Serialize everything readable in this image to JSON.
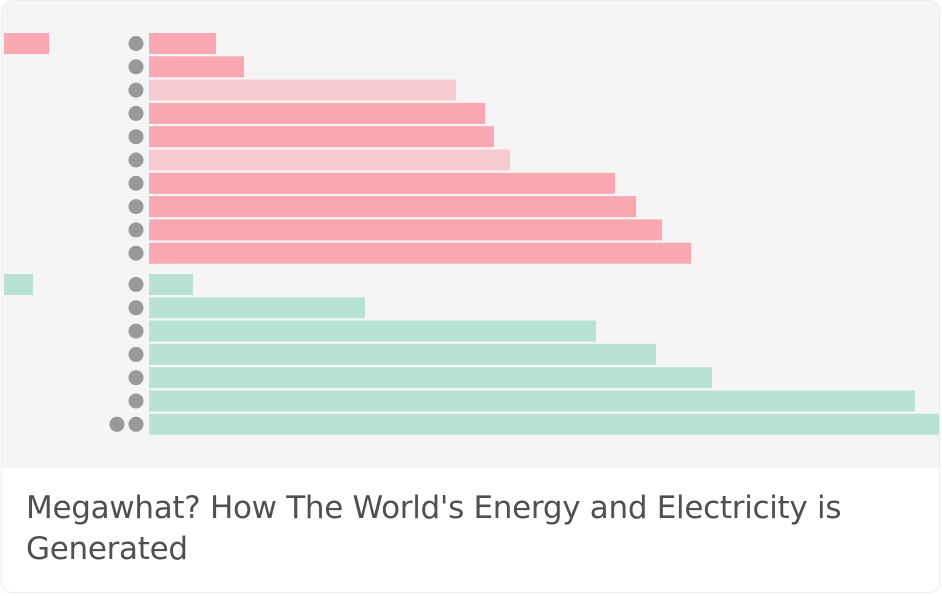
{
  "card": {
    "title": "Megawhat? How The World's Energy and Electricity is Generated"
  },
  "chart_data": {
    "type": "bar",
    "orientation": "horizontal",
    "title": "",
    "xlabel": "",
    "ylabel": "",
    "xlim": [
      0,
      790
    ],
    "groups": [
      {
        "color": "#f9a8b1",
        "light_color": "#f7cad1",
        "legend_swatch": true,
        "bars": [
          {
            "value": 67,
            "dots": 1,
            "light": false
          },
          {
            "value": 95,
            "dots": 1,
            "light": false
          },
          {
            "value": 307,
            "dots": 1,
            "light": true
          },
          {
            "value": 336,
            "dots": 1,
            "light": false
          },
          {
            "value": 345,
            "dots": 1,
            "light": false
          },
          {
            "value": 361,
            "dots": 1,
            "light": true
          },
          {
            "value": 466,
            "dots": 1,
            "light": false
          },
          {
            "value": 487,
            "dots": 1,
            "light": false
          },
          {
            "value": 513,
            "dots": 1,
            "light": false
          },
          {
            "value": 542,
            "dots": 1,
            "light": false
          }
        ]
      },
      {
        "color": "#b8e2d5",
        "light_color": "#b8e2d5",
        "legend_swatch": true,
        "bars": [
          {
            "value": 44,
            "dots": 1,
            "light": false
          },
          {
            "value": 216,
            "dots": 1,
            "light": false
          },
          {
            "value": 447,
            "dots": 1,
            "light": false
          },
          {
            "value": 507,
            "dots": 1,
            "light": false
          },
          {
            "value": 563,
            "dots": 1,
            "light": false
          },
          {
            "value": 766,
            "dots": 1,
            "light": false
          },
          {
            "value": 790,
            "dots": 2,
            "light": false
          }
        ]
      }
    ],
    "dot_color": "#999999",
    "grid": false,
    "legend": "none"
  }
}
